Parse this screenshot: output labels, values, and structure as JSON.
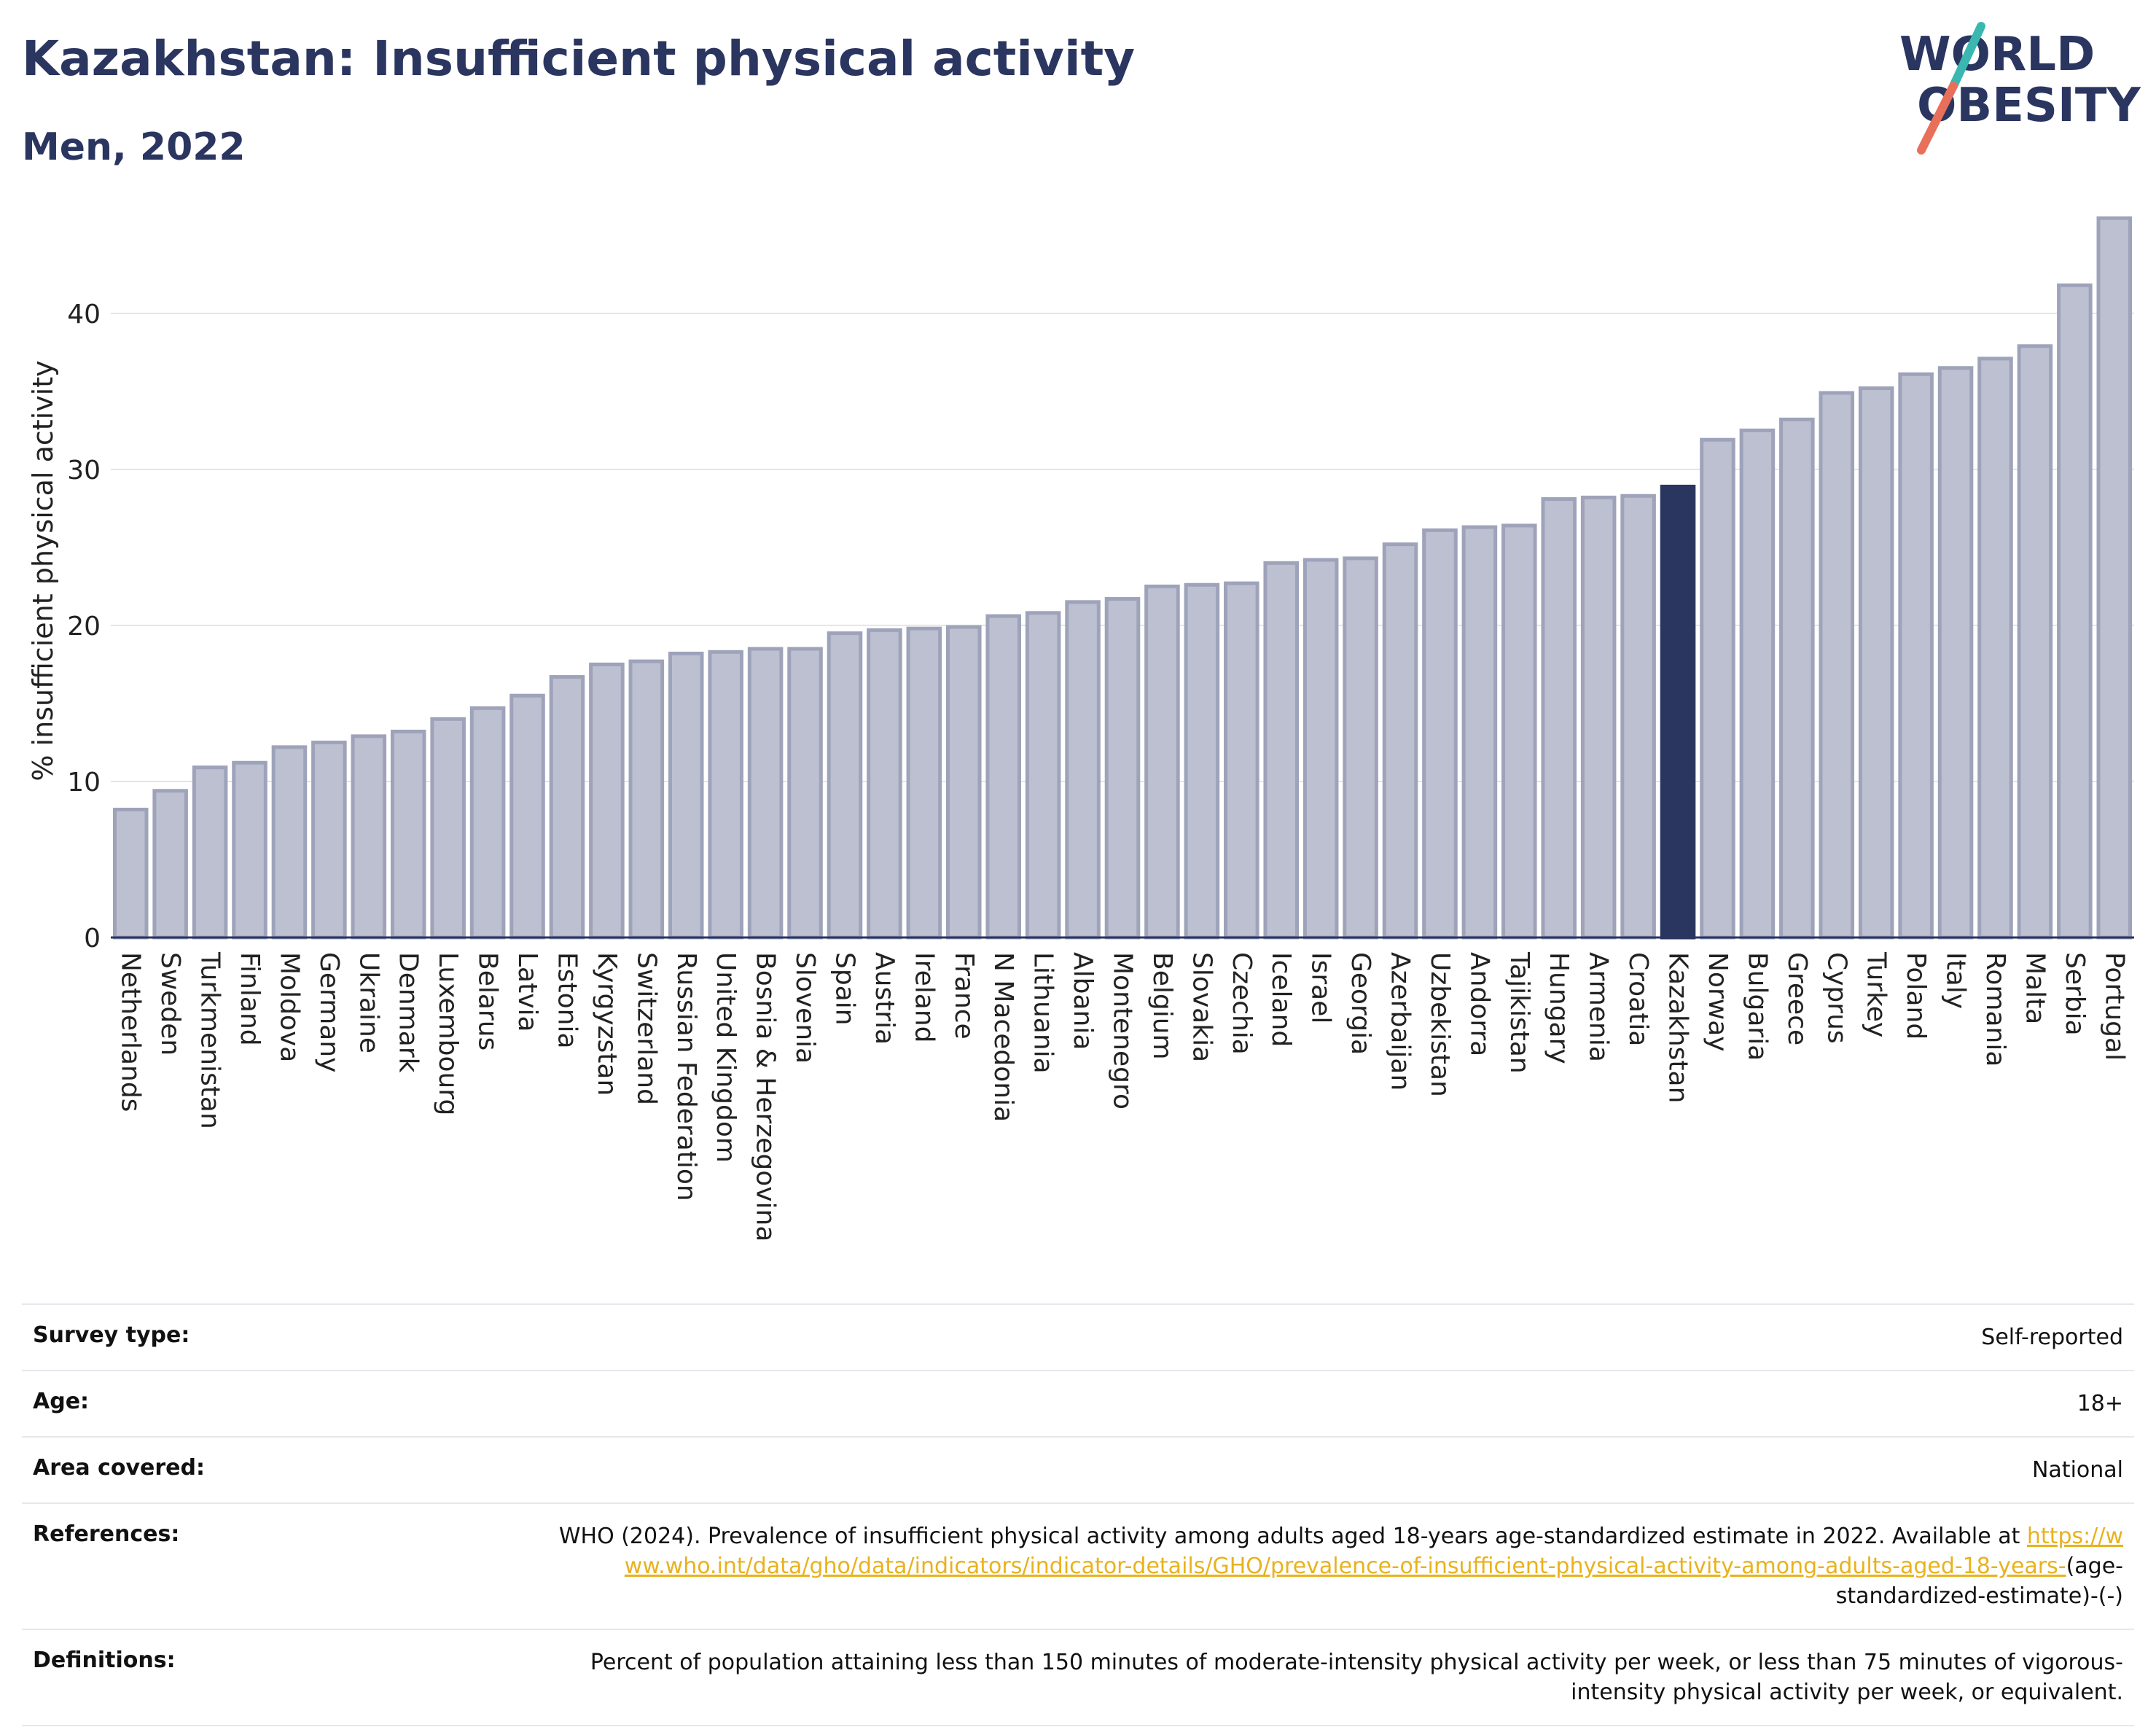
{
  "header": {
    "title": "Kazakhstan: Insufficient physical activity",
    "subtitle": "Men, 2022"
  },
  "logo": {
    "line1": "WORLD",
    "line2": "OBESITY",
    "accent_teal": "#3bb7b2",
    "accent_coral": "#e8705a"
  },
  "colors": {
    "bar": "#bcc0d0",
    "bar_border": "#9ea3ba",
    "highlight": "#2a3560",
    "title": "#2a3560",
    "link": "#e8b21e"
  },
  "chart_data": {
    "type": "bar",
    "ylabel": "% insufficient physical activity",
    "xlabel": "",
    "ylim": [
      0,
      47
    ],
    "yticks": [
      0,
      10,
      20,
      30,
      40
    ],
    "grid": true,
    "highlight": "Kazakhstan",
    "categories": [
      "Netherlands",
      "Sweden",
      "Turkmenistan",
      "Finland",
      "Moldova",
      "Germany",
      "Ukraine",
      "Denmark",
      "Luxembourg",
      "Belarus",
      "Latvia",
      "Estonia",
      "Kyrgyzstan",
      "Switzerland",
      "Russian Federation",
      "United Kingdom",
      "Bosnia & Herzegovina",
      "Slovenia",
      "Spain",
      "Austria",
      "Ireland",
      "France",
      "N Macedonia",
      "Lithuania",
      "Albania",
      "Montenegro",
      "Belgium",
      "Slovakia",
      "Czechia",
      "Iceland",
      "Israel",
      "Georgia",
      "Azerbaijan",
      "Uzbekistan",
      "Andorra",
      "Tajikistan",
      "Hungary",
      "Armenia",
      "Croatia",
      "Kazakhstan",
      "Norway",
      "Bulgaria",
      "Greece",
      "Cyprus",
      "Turkey",
      "Poland",
      "Italy",
      "Romania",
      "Malta",
      "Serbia",
      "Portugal"
    ],
    "values": [
      8.2,
      9.4,
      10.9,
      11.2,
      12.2,
      12.5,
      12.9,
      13.2,
      14.0,
      14.7,
      15.5,
      16.7,
      17.5,
      17.7,
      18.2,
      18.3,
      18.5,
      18.5,
      19.5,
      19.7,
      19.8,
      19.9,
      20.6,
      20.8,
      21.5,
      21.7,
      22.5,
      22.6,
      22.7,
      24.0,
      24.2,
      24.3,
      25.2,
      26.1,
      26.3,
      26.4,
      28.1,
      28.2,
      28.3,
      28.9,
      31.9,
      32.5,
      33.2,
      34.9,
      35.2,
      36.1,
      36.5,
      37.1,
      37.9,
      41.8,
      46.1
    ]
  },
  "info": {
    "survey_type_label": "Survey type:",
    "survey_type_value": "Self-reported",
    "age_label": "Age:",
    "age_value": "18+",
    "area_label": "Area covered:",
    "area_value": "National",
    "references_label": "References:",
    "references_text": "WHO (2024). Prevalence of insufficient physical activity among adults aged 18-years age-standardized estimate in 2022. Available at",
    "references_link": "https://www.who.int/data/gho/data/indicators/indicator-details/GHO/prevalence-of-insufficient-physical-activity-among-adults-aged-18-years-",
    "references_suffix": "(age-standardized-estimate)-(-)",
    "definitions_label": "Definitions:",
    "definitions_value": "Percent of population attaining less than 150 minutes of moderate-intensity physical activity per week, or less than 75 minutes of vigorous-intensity physical activity per week, or equivalent."
  }
}
